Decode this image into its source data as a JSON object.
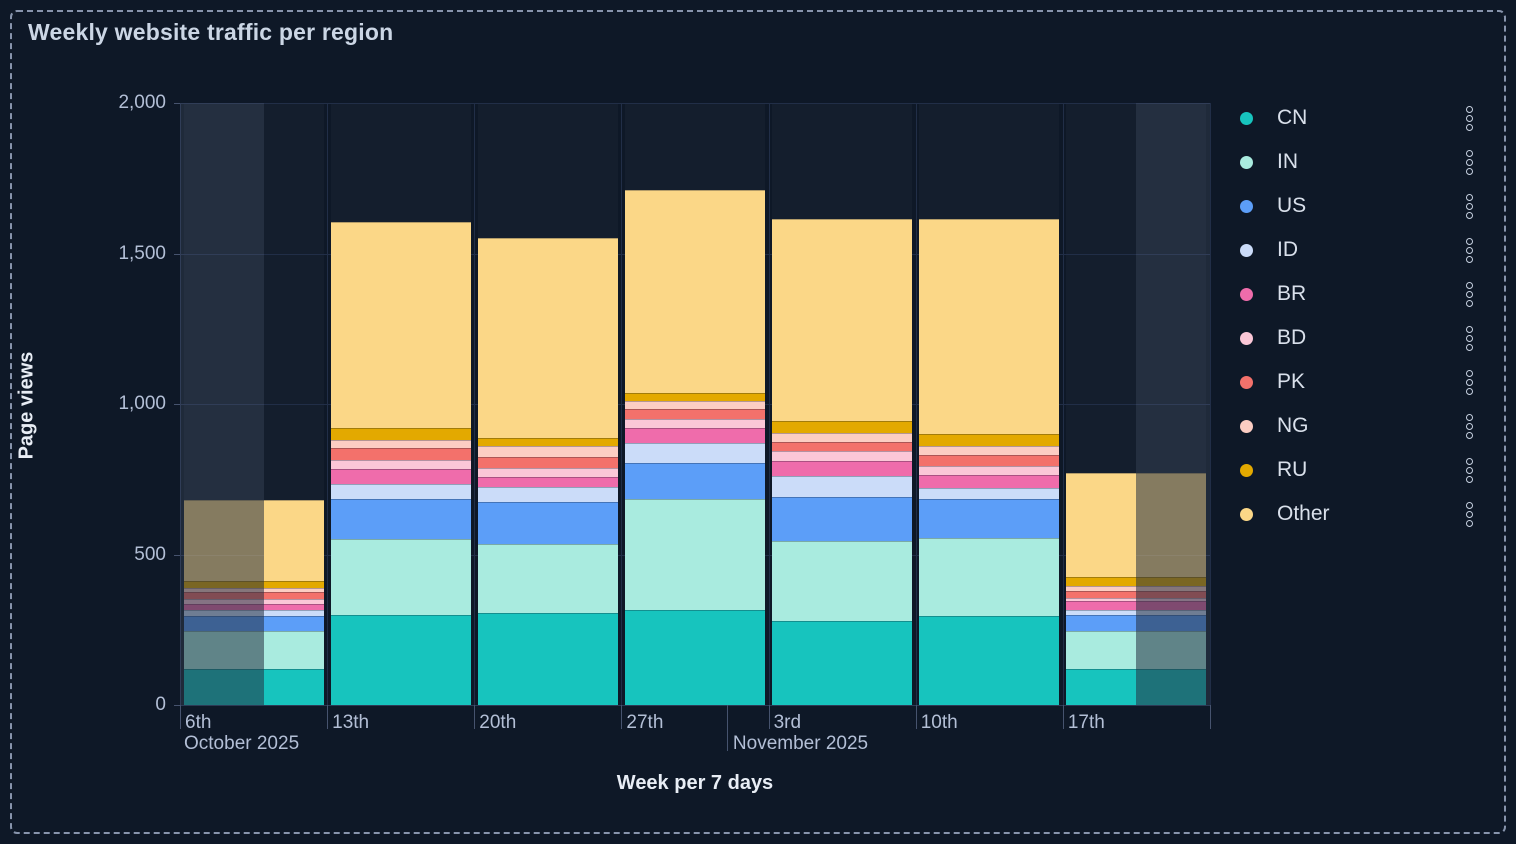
{
  "title": "Weekly website traffic per region",
  "colors": {
    "background": "#0e1827",
    "plot_gap": "#0c1422",
    "grid": "#212e47",
    "axis_text": "#b3bfd6",
    "title_text": "#cbd6e5",
    "dashed_border": "#8794ac"
  },
  "y_axis": {
    "label": "Page views",
    "tick_labels": [
      "2,000",
      "1,500",
      "1,000",
      "500",
      "0"
    ]
  },
  "x_axis": {
    "label": "Week per 7 days",
    "tick_labels": [
      "6th",
      "13th",
      "20th",
      "27th",
      "3rd",
      "10th",
      "17th"
    ],
    "month_labels": [
      "October 2025",
      "November 2025"
    ]
  },
  "legend": {
    "items": [
      {
        "label": "CN",
        "color": "#17c4be"
      },
      {
        "label": "IN",
        "color": "#a9ebdf"
      },
      {
        "label": "US",
        "color": "#5c9ef8"
      },
      {
        "label": "ID",
        "color": "#cbdcf9"
      },
      {
        "label": "BR",
        "color": "#ef6cab"
      },
      {
        "label": "BD",
        "color": "#fbc7d7"
      },
      {
        "label": "PK",
        "color": "#f3716b"
      },
      {
        "label": "NG",
        "color": "#fccdc3"
      },
      {
        "label": "RU",
        "color": "#e3a900"
      },
      {
        "label": "Other",
        "color": "#fbd787"
      }
    ],
    "menu_icon": "kebab-circles"
  },
  "chart_data": {
    "type": "bar",
    "stacked": true,
    "title": "Weekly website traffic per region",
    "xlabel": "Week per 7 days",
    "ylabel": "Page views",
    "ylim": [
      0,
      2000
    ],
    "y_ticks": [
      0,
      500,
      1000,
      1500,
      2000
    ],
    "grid": true,
    "legend_position": "right",
    "categories": [
      "6th (October 2025)",
      "13th",
      "20th",
      "27th",
      "3rd (November 2025)",
      "10th",
      "17th"
    ],
    "series": [
      {
        "name": "CN",
        "color": "#17c4be",
        "values": [
          120,
          300,
          305,
          315,
          280,
          295,
          120
        ]
      },
      {
        "name": "IN",
        "color": "#a9ebdf",
        "values": [
          125,
          250,
          230,
          370,
          265,
          260,
          125
        ]
      },
      {
        "name": "US",
        "color": "#5c9ef8",
        "values": [
          50,
          135,
          140,
          120,
          145,
          130,
          55
        ]
      },
      {
        "name": "ID",
        "color": "#cbdcf9",
        "values": [
          20,
          50,
          50,
          65,
          70,
          35,
          15
        ]
      },
      {
        "name": "BR",
        "color": "#ef6cab",
        "values": [
          20,
          50,
          33,
          50,
          50,
          45,
          30
        ]
      },
      {
        "name": "BD",
        "color": "#fbc7d7",
        "values": [
          18,
          30,
          30,
          30,
          35,
          30,
          10
        ]
      },
      {
        "name": "PK",
        "color": "#f3716b",
        "values": [
          22,
          40,
          37,
          35,
          30,
          35,
          25
        ]
      },
      {
        "name": "NG",
        "color": "#fccdc3",
        "values": [
          15,
          25,
          35,
          25,
          30,
          30,
          15
        ]
      },
      {
        "name": "RU",
        "color": "#e3a900",
        "values": [
          22,
          40,
          26,
          25,
          40,
          40,
          30
        ]
      },
      {
        "name": "Other",
        "color": "#fbd787",
        "values": [
          270,
          685,
          665,
          675,
          670,
          715,
          345
        ]
      }
    ],
    "totals": [
      682,
      1605,
      1551,
      1710,
      1615,
      1615,
      770
    ],
    "faded_partial_week_zones_fraction": [
      [
        0,
        0.082
      ],
      [
        0.9285,
        1
      ]
    ],
    "month_boundary_tick_fraction": 0.531
  }
}
